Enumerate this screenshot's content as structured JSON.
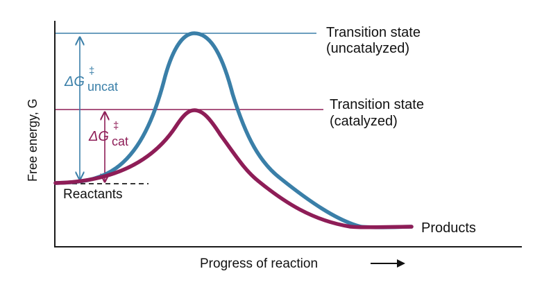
{
  "diagram": {
    "y_axis_label": "Free energy, G",
    "x_axis_label": "Progress of reaction",
    "x_axis_arrow": "→",
    "labels": {
      "ts_uncat_line1": "Transition state",
      "ts_uncat_line2": "(uncatalyzed)",
      "ts_cat_line1": "Transition state",
      "ts_cat_line2": "(catalyzed)",
      "reactants": "Reactants",
      "products": "Products"
    },
    "delta_g": {
      "symbol": "ΔG",
      "superscript": "‡",
      "uncat_sub": "uncat",
      "cat_sub": "cat"
    },
    "colors": {
      "uncatalyzed": "#3a7fa8",
      "catalyzed": "#8e1d57",
      "axis": "#1a1a1a"
    }
  }
}
